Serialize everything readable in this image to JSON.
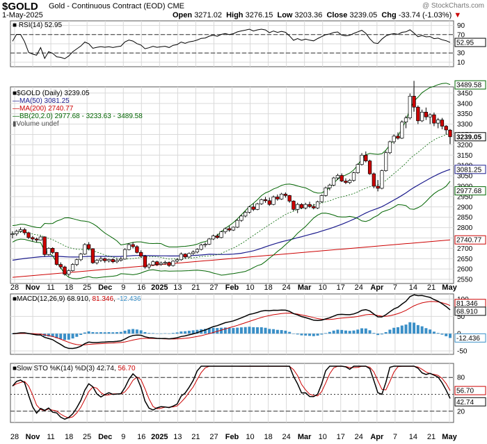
{
  "header": {
    "symbol": "$GOLD",
    "description": "Gold - Continuous Contract (EOD)  CME",
    "date": "1-May-2025",
    "open_label": "Open",
    "open": "3271.02",
    "high_label": "High",
    "high": "3276.15",
    "low_label": "Low",
    "low": "3203.36",
    "close_label": "Close",
    "close": "3239.05",
    "chg_label": "Chg",
    "chg": "-33.74 (-1.03%)",
    "watermark": "@ StockCharts.com"
  },
  "colors": {
    "up": "#ffffff",
    "down": "#cc0000",
    "ma50": "#1a1a8c",
    "ma200": "#cc0000",
    "bb": "#006400",
    "macd": "#000000",
    "signal": "#cc0000",
    "hist": "#3a8fc7",
    "k": "#000000",
    "d": "#cc0000",
    "grid": "#d9d9d9"
  },
  "rsi": {
    "legend": "RSI(14) 52.95",
    "ticks": [
      "90",
      "70",
      "50",
      "30",
      "10"
    ],
    "last": "52.95"
  },
  "price": {
    "legend": {
      "title": "$GOLD (Daily) 3239.05",
      "ma50": "MA(50) 3081.25",
      "ma200": "MA(200) 2740.77",
      "bb": "BB(20,2.0) 2977.68 - 3233.63 - 3489.58",
      "vol": "Volume undef"
    },
    "ticks": [
      "3450",
      "3400",
      "3350",
      "3300",
      "3250",
      "3200",
      "3150",
      "3100",
      "3050",
      "3000",
      "2950",
      "2900",
      "2850",
      "2800",
      "2750",
      "2700",
      "2650",
      "2600",
      "2550"
    ],
    "tags": {
      "bb_up": "3489.58",
      "last": "3239.05",
      "ma50": "3081.25",
      "bb_low": "2977.68",
      "ma200": "2740.77"
    }
  },
  "macd": {
    "legend_name": "MACD(12,26,9)",
    "legend_macd": "68.910",
    "legend_signal": "81.346",
    "legend_hist": "-12.436",
    "ticks": [
      "100",
      "50",
      "0",
      "-50"
    ],
    "tags": {
      "signal": "81.346",
      "macd": "68.910",
      "hist": "-12.436"
    }
  },
  "sto": {
    "legend_name": "Slow STO %K(14) %D(3)",
    "legend_k": "42.74",
    "legend_d": "56.70",
    "ticks": [
      "80",
      "20"
    ],
    "tags": {
      "d": "56.70",
      "k": "42.74"
    }
  },
  "xaxis": [
    "28",
    "Nov",
    "11",
    "18",
    "25",
    "Dec",
    "9",
    "16",
    "2025",
    "13",
    "21",
    "27",
    "Feb",
    "10",
    "18",
    "24",
    "Mar",
    "10",
    "17",
    "24",
    "Apr",
    "7",
    "14",
    "21",
    "May"
  ],
  "chart_data": {
    "type": "candlestick",
    "title": "$GOLD (Daily)",
    "x_start": "2024-10-28",
    "x_end": "2025-05-01",
    "ohlc": [
      [
        2766,
        2782,
        2748,
        2770
      ],
      [
        2770,
        2790,
        2760,
        2782
      ],
      [
        2782,
        2801,
        2775,
        2790
      ],
      [
        2790,
        2798,
        2764,
        2775
      ],
      [
        2775,
        2780,
        2745,
        2752
      ],
      [
        2752,
        2760,
        2733,
        2745
      ],
      [
        2745,
        2752,
        2728,
        2740
      ],
      [
        2740,
        2760,
        2738,
        2755
      ],
      [
        2755,
        2758,
        2660,
        2670
      ],
      [
        2670,
        2705,
        2665,
        2700
      ],
      [
        2700,
        2705,
        2672,
        2680
      ],
      [
        2680,
        2682,
        2617,
        2622
      ],
      [
        2622,
        2632,
        2600,
        2610
      ],
      [
        2610,
        2616,
        2568,
        2575
      ],
      [
        2575,
        2598,
        2565,
        2592
      ],
      [
        2592,
        2628,
        2588,
        2622
      ],
      [
        2622,
        2650,
        2614,
        2645
      ],
      [
        2645,
        2678,
        2638,
        2672
      ],
      [
        2672,
        2725,
        2668,
        2718
      ],
      [
        2718,
        2730,
        2690,
        2698
      ],
      [
        2698,
        2700,
        2625,
        2630
      ],
      [
        2630,
        2648,
        2622,
        2642
      ],
      [
        2642,
        2660,
        2634,
        2650
      ],
      [
        2650,
        2655,
        2630,
        2640
      ],
      [
        2640,
        2650,
        2632,
        2646
      ],
      [
        2646,
        2652,
        2628,
        2635
      ],
      [
        2635,
        2650,
        2628,
        2642
      ],
      [
        2642,
        2658,
        2636,
        2648
      ],
      [
        2648,
        2700,
        2645,
        2694
      ],
      [
        2694,
        2725,
        2690,
        2718
      ],
      [
        2718,
        2730,
        2700,
        2708
      ],
      [
        2708,
        2715,
        2675,
        2680
      ],
      [
        2680,
        2690,
        2655,
        2662
      ],
      [
        2662,
        2668,
        2602,
        2610
      ],
      [
        2610,
        2628,
        2600,
        2620
      ],
      [
        2620,
        2642,
        2614,
        2635
      ],
      [
        2635,
        2640,
        2614,
        2622
      ],
      [
        2622,
        2636,
        2616,
        2628
      ],
      [
        2628,
        2640,
        2620,
        2632
      ],
      [
        2632,
        2636,
        2610,
        2617
      ],
      [
        2617,
        2642,
        2612,
        2638
      ],
      [
        2638,
        2652,
        2630,
        2645
      ],
      [
        2645,
        2680,
        2640,
        2672
      ],
      [
        2672,
        2676,
        2650,
        2658
      ],
      [
        2658,
        2680,
        2654,
        2675
      ],
      [
        2675,
        2690,
        2668,
        2682
      ],
      [
        2682,
        2700,
        2676,
        2695
      ],
      [
        2695,
        2722,
        2690,
        2716
      ],
      [
        2716,
        2728,
        2705,
        2720
      ],
      [
        2720,
        2750,
        2716,
        2745
      ],
      [
        2745,
        2766,
        2740,
        2760
      ],
      [
        2760,
        2770,
        2746,
        2752
      ],
      [
        2752,
        2785,
        2748,
        2780
      ],
      [
        2780,
        2800,
        2770,
        2795
      ],
      [
        2795,
        2808,
        2780,
        2788
      ],
      [
        2788,
        2805,
        2784,
        2802
      ],
      [
        2802,
        2840,
        2798,
        2835
      ],
      [
        2835,
        2862,
        2828,
        2856
      ],
      [
        2856,
        2880,
        2850,
        2874
      ],
      [
        2874,
        2905,
        2868,
        2900
      ],
      [
        2900,
        2916,
        2880,
        2888
      ],
      [
        2888,
        2920,
        2884,
        2915
      ],
      [
        2915,
        2940,
        2910,
        2935
      ],
      [
        2935,
        2948,
        2920,
        2930
      ],
      [
        2930,
        2945,
        2905,
        2912
      ],
      [
        2912,
        2955,
        2908,
        2948
      ],
      [
        2948,
        2960,
        2930,
        2938
      ],
      [
        2938,
        2968,
        2934,
        2962
      ],
      [
        2962,
        2970,
        2945,
        2955
      ],
      [
        2955,
        2958,
        2920,
        2928
      ],
      [
        2928,
        2932,
        2880,
        2888
      ],
      [
        2888,
        2920,
        2870,
        2912
      ],
      [
        2912,
        2918,
        2890,
        2895
      ],
      [
        2895,
        2920,
        2888,
        2912
      ],
      [
        2912,
        2925,
        2895,
        2902
      ],
      [
        2902,
        2914,
        2888,
        2895
      ],
      [
        2895,
        2930,
        2890,
        2925
      ],
      [
        2925,
        2960,
        2920,
        2955
      ],
      [
        2955,
        2998,
        2950,
        2992
      ],
      [
        2992,
        3012,
        2980,
        3005
      ],
      [
        3005,
        3045,
        3000,
        3040
      ],
      [
        3040,
        3060,
        3030,
        3052
      ],
      [
        3052,
        3062,
        3020,
        3025
      ],
      [
        3025,
        3038,
        3010,
        3018
      ],
      [
        3018,
        3035,
        3010,
        3028
      ],
      [
        3028,
        3070,
        3022,
        3065
      ],
      [
        3065,
        3110,
        3060,
        3105
      ],
      [
        3105,
        3160,
        3100,
        3150
      ],
      [
        3150,
        3168,
        3115,
        3122
      ],
      [
        3122,
        3128,
        3055,
        3060
      ],
      [
        3060,
        3066,
        2990,
        3000
      ],
      [
        3000,
        3030,
        2975,
        2990
      ],
      [
        2990,
        3080,
        2985,
        3075
      ],
      [
        3075,
        3170,
        3070,
        3162
      ],
      [
        3162,
        3220,
        3155,
        3215
      ],
      [
        3215,
        3250,
        3205,
        3242
      ],
      [
        3242,
        3260,
        3225,
        3232
      ],
      [
        3232,
        3318,
        3228,
        3310
      ],
      [
        3310,
        3340,
        3280,
        3330
      ],
      [
        3330,
        3448,
        3322,
        3435
      ],
      [
        3435,
        3509,
        3360,
        3382
      ],
      [
        3382,
        3390,
        3300,
        3316
      ],
      [
        3316,
        3370,
        3310,
        3358
      ],
      [
        3358,
        3380,
        3320,
        3335
      ],
      [
        3335,
        3352,
        3300,
        3345
      ],
      [
        3345,
        3356,
        3290,
        3305
      ],
      [
        3305,
        3330,
        3280,
        3320
      ],
      [
        3320,
        3330,
        3275,
        3290
      ],
      [
        3290,
        3295,
        3250,
        3272
      ],
      [
        3271,
        3276,
        3203,
        3239
      ]
    ],
    "ma50_last": 3081.25,
    "ma200_last": 2740.77,
    "bb_upper_last": 3489.58,
    "bb_mid_last": 3233.63,
    "bb_lower_last": 2977.68,
    "rsi_last": 52.95,
    "macd_last": 68.91,
    "signal_last": 81.346,
    "hist_last": -12.436,
    "stoK_last": 42.74,
    "stoD_last": 56.7,
    "price_ylim": [
      2530,
      3480
    ],
    "rsi_ylim": [
      0,
      100
    ],
    "macd_ylim": [
      -60,
      115
    ],
    "sto_ylim": [
      0,
      105
    ]
  }
}
